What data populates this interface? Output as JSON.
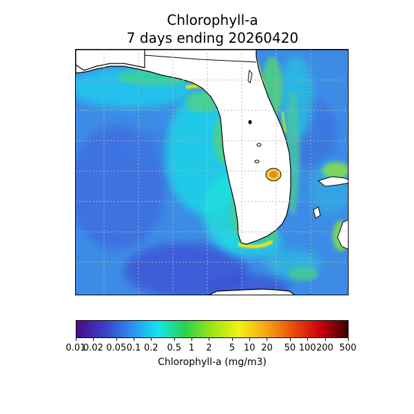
{
  "title": [
    "Chlorophyll-a",
    "7 days ending 20260420"
  ],
  "colorbar": {
    "label": "Chlorophyll-a (mg/m3)",
    "scale": "log",
    "range": [
      0.01,
      500
    ],
    "ticks": [
      "0.01",
      "0.02",
      "0.05",
      "0.1",
      "0.2",
      "0.5",
      "1",
      "2",
      "5",
      "10",
      "20",
      "50",
      "100",
      "200",
      "500"
    ],
    "colormap": [
      "#4b0a87",
      "#3d3cc8",
      "#2a8cf0",
      "#14e6f0",
      "#28d24b",
      "#9be614",
      "#f5f014",
      "#f5a514",
      "#eb4b0a",
      "#c8000a",
      "#3c0000"
    ]
  },
  "colors": {
    "land": "#ffffff",
    "coastline": "#000000",
    "gridlines": "#b4b4b4",
    "open_ocean": "#3c8ce6"
  }
}
